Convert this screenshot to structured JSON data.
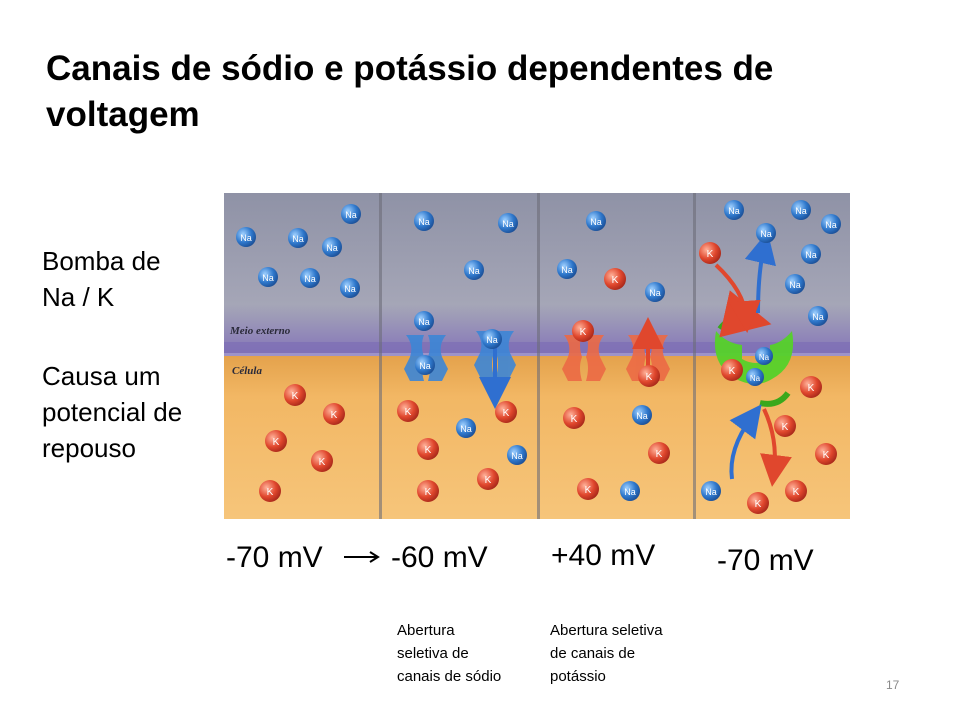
{
  "slide": {
    "title": "Canais de sódio e potássio dependentes de voltagem",
    "side_text": {
      "line1": "Bomba de",
      "line2": "Na / K",
      "line3": "Causa um",
      "line4": "potencial de",
      "line5": "repouso"
    },
    "diagram": {
      "label_outside": "Meio externo",
      "label_cell": "Célula",
      "na_ion": "Na",
      "k_ion": "K",
      "colors": {
        "outside_top": "#8f92a6",
        "membrane": "#7d6fb6",
        "cell": "#f2b764",
        "na": "#2f78cc",
        "k": "#e0472d",
        "pump": "#55d12a"
      }
    },
    "voltages": {
      "v1": "-70 mV",
      "v2": "-60 mV",
      "v3": "+40 mV",
      "v4": "-70 mV"
    },
    "notes": {
      "sodium_line1": "Abertura",
      "sodium_line2": "seletiva de",
      "sodium_line3": "canais de sódio",
      "potassium_line1": "Abertura seletiva",
      "potassium_line2": "de canais de",
      "potassium_line3": "potássio"
    },
    "page_number": "17"
  }
}
